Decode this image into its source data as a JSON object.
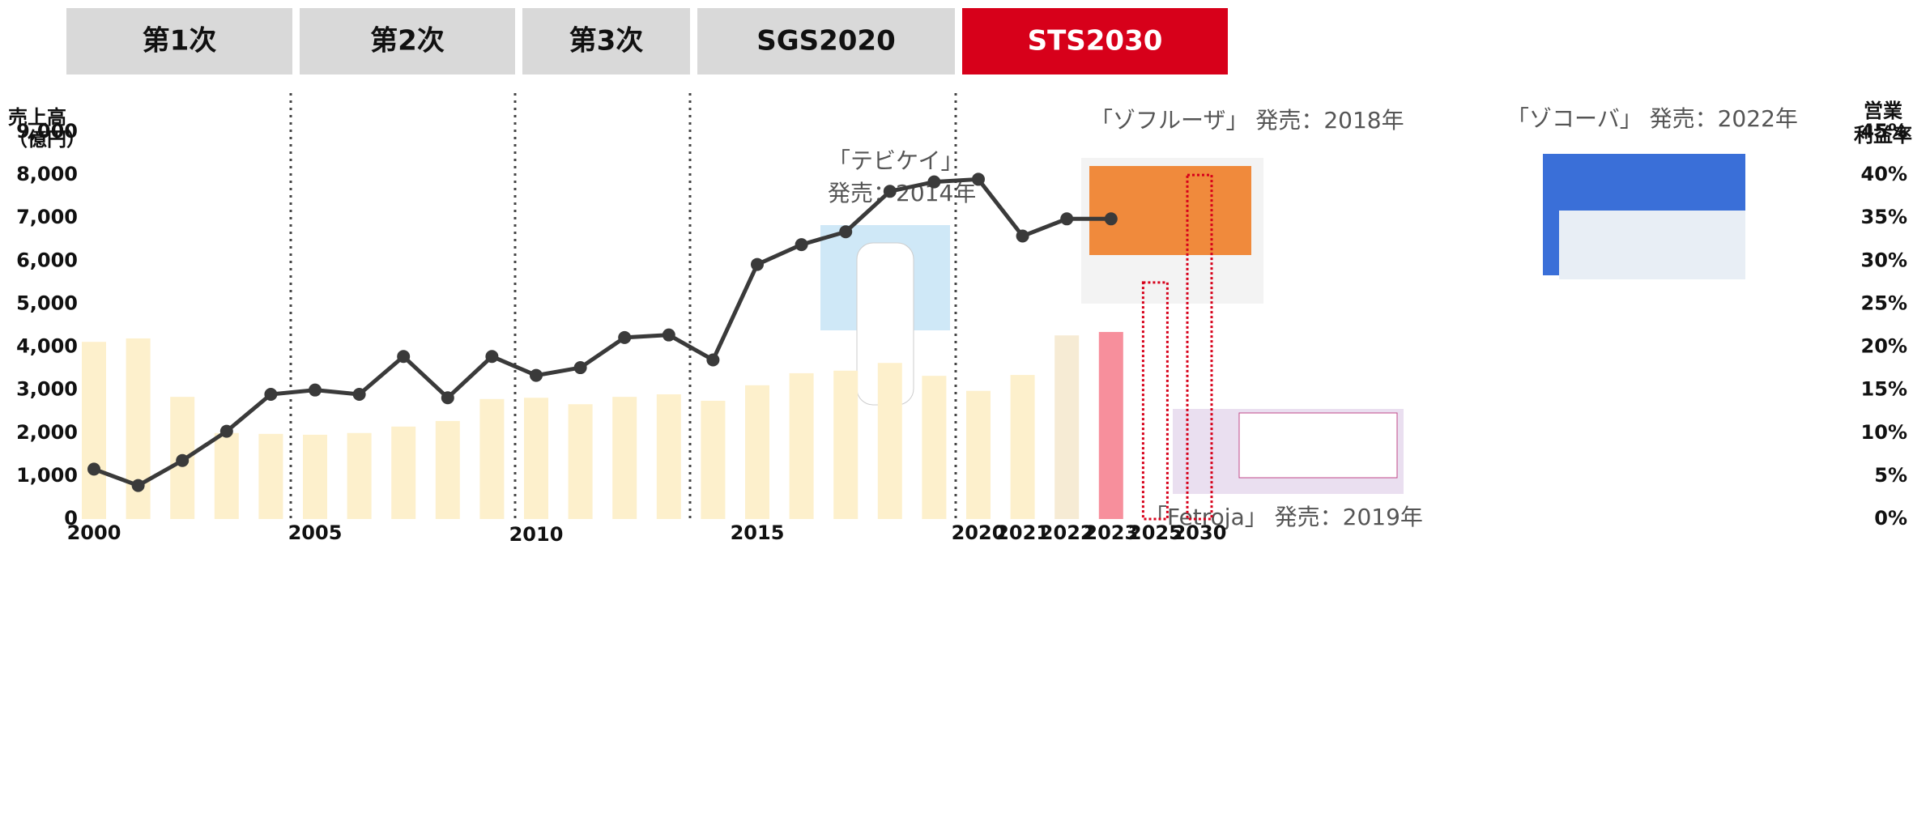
{
  "chart_data": {
    "type": "bar_line",
    "phases": [
      "第1次",
      "第2次",
      "第3次",
      "SGS2020",
      "STS2030"
    ],
    "y_label": [
      "売上高",
      "（億円）"
    ],
    "y2_label": [
      "営業",
      "利益率"
    ],
    "categories": [
      "2000",
      null,
      null,
      null,
      null,
      "2005",
      null,
      null,
      null,
      null,
      "2010",
      null,
      null,
      null,
      null,
      "2015",
      null,
      null,
      null,
      null,
      "2020",
      "2021",
      "2022",
      "2023",
      "2025",
      "2030"
    ],
    "ylim": [
      0,
      9000
    ],
    "yticks": [
      0,
      {
        "value": 1000,
        "label": "1,000"
      },
      {
        "value": 2000,
        "label": "2,000"
      },
      {
        "value": 3000,
        "label": "3,000"
      },
      {
        "value": 4000,
        "label": "4,000"
      },
      {
        "value": 5000,
        "label": "5,000"
      },
      {
        "value": 6000,
        "label": "6,000"
      },
      {
        "value": 7000,
        "label": "7,000"
      },
      {
        "value": 8000,
        "label": "8,000"
      },
      {
        "value": 9000,
        "label": "9,000"
      }
    ],
    "y2lim": [
      0,
      45
    ],
    "y2ticks": [
      {
        "value": 0,
        "label": "0%"
      },
      {
        "value": 5,
        "label": "5%"
      },
      {
        "value": 10,
        "label": "10%"
      },
      {
        "value": 15,
        "label": "15%"
      },
      {
        "value": 20,
        "label": "20%"
      },
      {
        "value": 25,
        "label": "25%"
      },
      {
        "value": 30,
        "label": "30%"
      },
      {
        "value": 35,
        "label": "35%"
      },
      {
        "value": 40,
        "label": "40%"
      },
      {
        "value": 45,
        "label": "45%"
      }
    ],
    "series": [
      {
        "kind": "bar",
        "color": "#fdf0cc",
        "colors": [
          "#fdf0cc",
          "#fdf0cc",
          "#fdf0cc",
          "#fdf0cc",
          "#fdf0cc",
          "#fdf0cc",
          "#fdf0cc",
          "#fdf0cc",
          "#fdf0cc",
          "#fdf0cc",
          "#fdf0cc",
          "#fdf0cc",
          "#fdf0cc",
          "#fdf0cc",
          "#fdf0cc",
          "#fdf0cc",
          "#fdf0cc",
          "#fdf0cc",
          "#fdf0cc",
          "#fdf0cc",
          "#fdf0cc",
          "#fdf0cc",
          "#f6ebd4",
          "#f78f9c",
          "#fdf0cc",
          "#fdf0cc"
        ],
        "values": [
          4120,
          4200,
          2840,
          2000,
          1980,
          1960,
          2000,
          2150,
          2280,
          2790,
          2820,
          2670,
          2840,
          2900,
          2750,
          3110,
          3390,
          3450,
          3630,
          3330,
          2980,
          3350,
          4270,
          4350,
          null,
          null
        ]
      },
      {
        "kind": "target",
        "color": "#d7001a",
        "values": [
          null,
          null,
          null,
          null,
          null,
          null,
          null,
          null,
          null,
          null,
          null,
          null,
          null,
          null,
          null,
          null,
          null,
          null,
          null,
          null,
          null,
          null,
          null,
          null,
          5500,
          8000
        ]
      },
      {
        "kind": "line",
        "axis": "y2",
        "color": "#3a3a3a",
        "values": [
          5.8,
          3.9,
          6.8,
          10.2,
          14.5,
          15.0,
          14.5,
          18.9,
          14.1,
          18.9,
          16.7,
          17.6,
          21.1,
          21.4,
          18.5,
          29.6,
          31.9,
          33.4,
          38.1,
          39.2,
          39.5,
          32.9,
          34.9,
          34.9,
          null,
          null
        ]
      }
    ],
    "annotations": [
      [
        "「テビケイ」",
        "発売：2014年"
      ],
      [
        "「ゾフルーザ」 発売：2018年"
      ],
      [
        "「Fetroja」 発売：2019年"
      ],
      [
        "「ゾコーバ」 発売：2022年"
      ]
    ]
  }
}
